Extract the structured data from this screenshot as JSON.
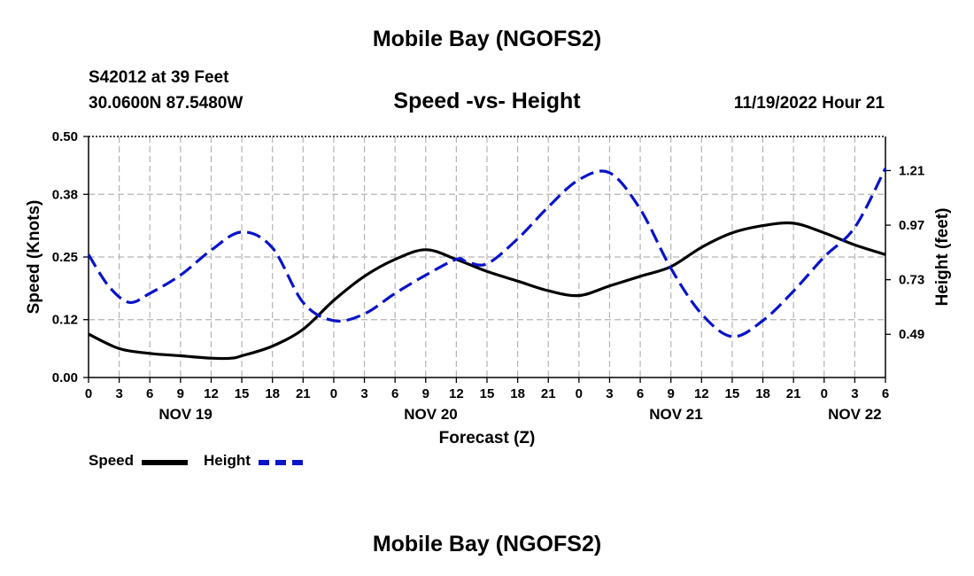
{
  "header": {
    "title": "Mobile Bay (NGOFS2)",
    "station": "S42012 at 39 Feet",
    "coordinates": "30.0600N  87.5480W",
    "subtitle": "Speed -vs- Height",
    "run_time": "11/19/2022 Hour 21"
  },
  "footer": {
    "title": "Mobile Bay (NGOFS2)"
  },
  "legend": [
    {
      "label": "Speed",
      "color": "#000000",
      "style": "solid"
    },
    {
      "label": "Height",
      "color": "#0a14c8",
      "style": "dashed"
    }
  ],
  "chart_data": {
    "type": "line",
    "title": "Speed -vs- Height",
    "xlabel": "Forecast (Z)",
    "ylabel": "Speed (Knots)",
    "y2label": "Height (feet)",
    "x_unit": "hours from NOV 19 00Z",
    "xlim": [
      0,
      78
    ],
    "ylim": [
      0,
      0.5
    ],
    "y2lim": [
      0.3,
      1.36
    ],
    "grid": true,
    "x_ticks": [
      0,
      3,
      6,
      9,
      12,
      15,
      18,
      21,
      24,
      27,
      30,
      33,
      36,
      39,
      42,
      45,
      48,
      51,
      54,
      57,
      60,
      63,
      66,
      69,
      72,
      75,
      78
    ],
    "x_tick_labels": [
      "0",
      "3",
      "6",
      "9",
      "12",
      "15",
      "18",
      "21",
      "0",
      "3",
      "6",
      "9",
      "12",
      "15",
      "18",
      "21",
      "0",
      "3",
      "6",
      "9",
      "12",
      "15",
      "18",
      "21",
      "0",
      "3",
      "6"
    ],
    "day_labels": [
      {
        "x": 9.5,
        "label": "NOV 19"
      },
      {
        "x": 33.5,
        "label": "NOV 20"
      },
      {
        "x": 57.5,
        "label": "NOV 21"
      },
      {
        "x": 75,
        "label": "NOV 22"
      }
    ],
    "y_ticks": [
      0,
      0.12,
      0.25,
      0.38,
      0.5
    ],
    "y_tick_labels": [
      "0.00",
      "0.12",
      "0.25",
      "0.38",
      "0.50"
    ],
    "y2_ticks": [
      0.49,
      0.73,
      0.97,
      1.21
    ],
    "y2_tick_labels": [
      "0.49",
      "0.73",
      "0.97",
      "1.21"
    ],
    "series": [
      {
        "name": "Speed",
        "axis": "left",
        "color": "#000000",
        "dashed": false,
        "x": [
          0,
          3,
          6,
          9,
          12,
          14,
          15,
          18,
          21,
          24,
          27,
          30,
          33,
          36,
          39,
          42,
          45,
          48,
          51,
          54,
          57,
          60,
          63,
          66,
          69,
          72,
          75,
          78
        ],
        "values": [
          0.09,
          0.06,
          0.05,
          0.045,
          0.04,
          0.04,
          0.045,
          0.065,
          0.1,
          0.16,
          0.21,
          0.245,
          0.265,
          0.245,
          0.22,
          0.2,
          0.18,
          0.17,
          0.19,
          0.21,
          0.23,
          0.27,
          0.3,
          0.315,
          0.32,
          0.3,
          0.275,
          0.255
        ]
      },
      {
        "name": "Height",
        "axis": "right",
        "color": "#0a14c8",
        "dashed": true,
        "x": [
          0,
          2,
          4,
          6,
          9,
          12,
          15,
          18,
          21,
          24,
          27,
          30,
          33,
          36,
          37,
          39,
          42,
          45,
          48,
          51,
          54,
          57,
          60,
          63,
          66,
          69,
          72,
          75,
          78
        ],
        "values": [
          0.84,
          0.7,
          0.63,
          0.67,
          0.75,
          0.86,
          0.94,
          0.87,
          0.63,
          0.55,
          0.58,
          0.67,
          0.75,
          0.82,
          0.81,
          0.8,
          0.91,
          1.05,
          1.17,
          1.2,
          1.04,
          0.78,
          0.58,
          0.48,
          0.55,
          0.68,
          0.83,
          0.96,
          1.22
        ]
      }
    ]
  }
}
